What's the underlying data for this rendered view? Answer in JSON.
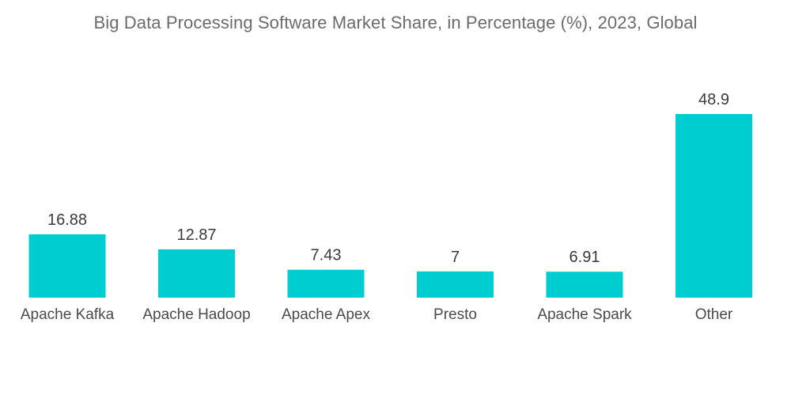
{
  "chart_data": {
    "type": "bar",
    "title": "Big Data Processing Software Market Share, in Percentage (%), 2023, Global",
    "categories": [
      "Apache Kafka",
      "Apache Hadoop",
      "Apache Apex",
      "Presto",
      "Apache Spark",
      "Other"
    ],
    "values": [
      16.88,
      12.87,
      7.43,
      7,
      6.91,
      48.9
    ],
    "value_labels": [
      "16.88",
      "12.87",
      "7.43",
      "7",
      "6.91",
      "48.9"
    ],
    "xlabel": "",
    "ylabel": "",
    "ylim": [
      0,
      48.9
    ],
    "grid": false,
    "legend": "none",
    "bar_color": "#00cdd0"
  }
}
